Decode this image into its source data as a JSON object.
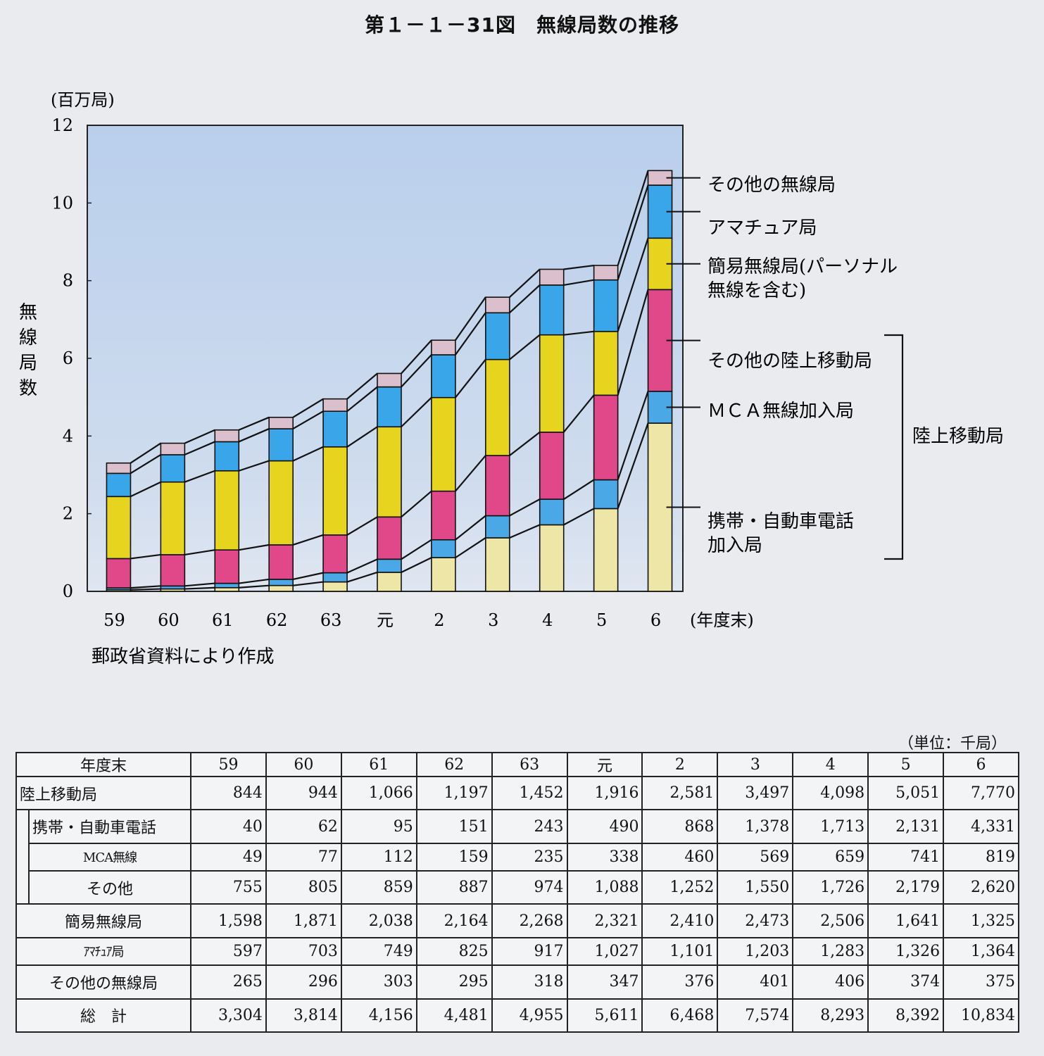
{
  "title": "第１－１－31図　無線局数の推移",
  "chart_data": {
    "type": "bar",
    "stacked": true,
    "categories": [
      "59",
      "60",
      "61",
      "62",
      "63",
      "元",
      "2",
      "3",
      "4",
      "5",
      "6"
    ],
    "x_unit": "(年度末)",
    "y_unit": "(百万局)",
    "ylabel": "無線局数",
    "ylim": [
      0,
      12
    ],
    "yticks": [
      0,
      2,
      4,
      6,
      8,
      10,
      12
    ],
    "source": "郵政省資料により作成",
    "series": [
      {
        "name": "携帯・自動車電話加入局",
        "color": "#eee6a6",
        "values": [
          0.04,
          0.062,
          0.095,
          0.151,
          0.243,
          0.49,
          0.868,
          1.378,
          1.713,
          2.131,
          4.331
        ]
      },
      {
        "name": "ＭＣＡ無線加入局",
        "color": "#4aa8e6",
        "values": [
          0.049,
          0.077,
          0.112,
          0.159,
          0.235,
          0.338,
          0.46,
          0.569,
          0.659,
          0.741,
          0.819
        ]
      },
      {
        "name": "その他の陸上移動局",
        "color": "#e0488a",
        "values": [
          0.755,
          0.805,
          0.859,
          0.887,
          0.974,
          1.088,
          1.252,
          1.55,
          1.726,
          2.179,
          2.62
        ]
      },
      {
        "name": "簡易無線局(パーソナル無線を含む)",
        "color": "#e6d41e",
        "values": [
          1.598,
          1.871,
          2.038,
          2.164,
          2.268,
          2.321,
          2.41,
          2.473,
          2.506,
          1.641,
          1.325
        ]
      },
      {
        "name": "アマチュア局",
        "color": "#3aa6ea",
        "values": [
          0.597,
          0.703,
          0.749,
          0.825,
          0.917,
          1.027,
          1.101,
          1.203,
          1.283,
          1.326,
          1.364
        ]
      },
      {
        "name": "その他の無線局",
        "color": "#dcbfcc",
        "values": [
          0.265,
          0.296,
          0.303,
          0.295,
          0.318,
          0.347,
          0.376,
          0.401,
          0.406,
          0.374,
          0.375
        ]
      }
    ],
    "legend": [
      {
        "label": "その他の無線局"
      },
      {
        "label": "アマチュア局"
      },
      {
        "label": "簡易無線局(パーソナル"
      },
      {
        "label": "無線を含む)"
      },
      {
        "label": "その他の陸上移動局"
      },
      {
        "label": "ＭＣＡ無線加入局"
      },
      {
        "label": "携帯・自動車電話"
      },
      {
        "label": "加入局"
      }
    ],
    "group_label": "陸上移動局"
  },
  "table": {
    "unit": "（単位：千局）",
    "header_label": "年度末",
    "columns": [
      "59",
      "60",
      "61",
      "62",
      "63",
      "元",
      "2",
      "3",
      "4",
      "5",
      "6"
    ],
    "rows": [
      {
        "label": "陸上移動局",
        "values": [
          "844",
          "944",
          "1,066",
          "1,197",
          "1,452",
          "1,916",
          "2,581",
          "3,497",
          "4,098",
          "5,051",
          "7,770"
        ]
      },
      {
        "label": "携帯・自動車電話",
        "values": [
          "40",
          "62",
          "95",
          "151",
          "243",
          "490",
          "868",
          "1,378",
          "1,713",
          "2,131",
          "4,331"
        ]
      },
      {
        "label": "MCA無線",
        "values": [
          "49",
          "77",
          "112",
          "159",
          "235",
          "338",
          "460",
          "569",
          "659",
          "741",
          "819"
        ]
      },
      {
        "label": "その他",
        "values": [
          "755",
          "805",
          "859",
          "887",
          "974",
          "1,088",
          "1,252",
          "1,550",
          "1,726",
          "2,179",
          "2,620"
        ]
      },
      {
        "label": "簡易無線局",
        "values": [
          "1,598",
          "1,871",
          "2,038",
          "2,164",
          "2,268",
          "2,321",
          "2,410",
          "2,473",
          "2,506",
          "1,641",
          "1,325"
        ]
      },
      {
        "label": "ｱﾏﾁｭｱ局",
        "values": [
          "597",
          "703",
          "749",
          "825",
          "917",
          "1,027",
          "1,101",
          "1,203",
          "1,283",
          "1,326",
          "1,364"
        ]
      },
      {
        "label": "その他の無線局",
        "values": [
          "265",
          "296",
          "303",
          "295",
          "318",
          "347",
          "376",
          "401",
          "406",
          "374",
          "375"
        ]
      },
      {
        "label": "総　計",
        "values": [
          "3,304",
          "3,814",
          "4,156",
          "4,481",
          "4,955",
          "5,611",
          "6,468",
          "7,574",
          "8,293",
          "8,392",
          "10,834"
        ]
      }
    ]
  }
}
